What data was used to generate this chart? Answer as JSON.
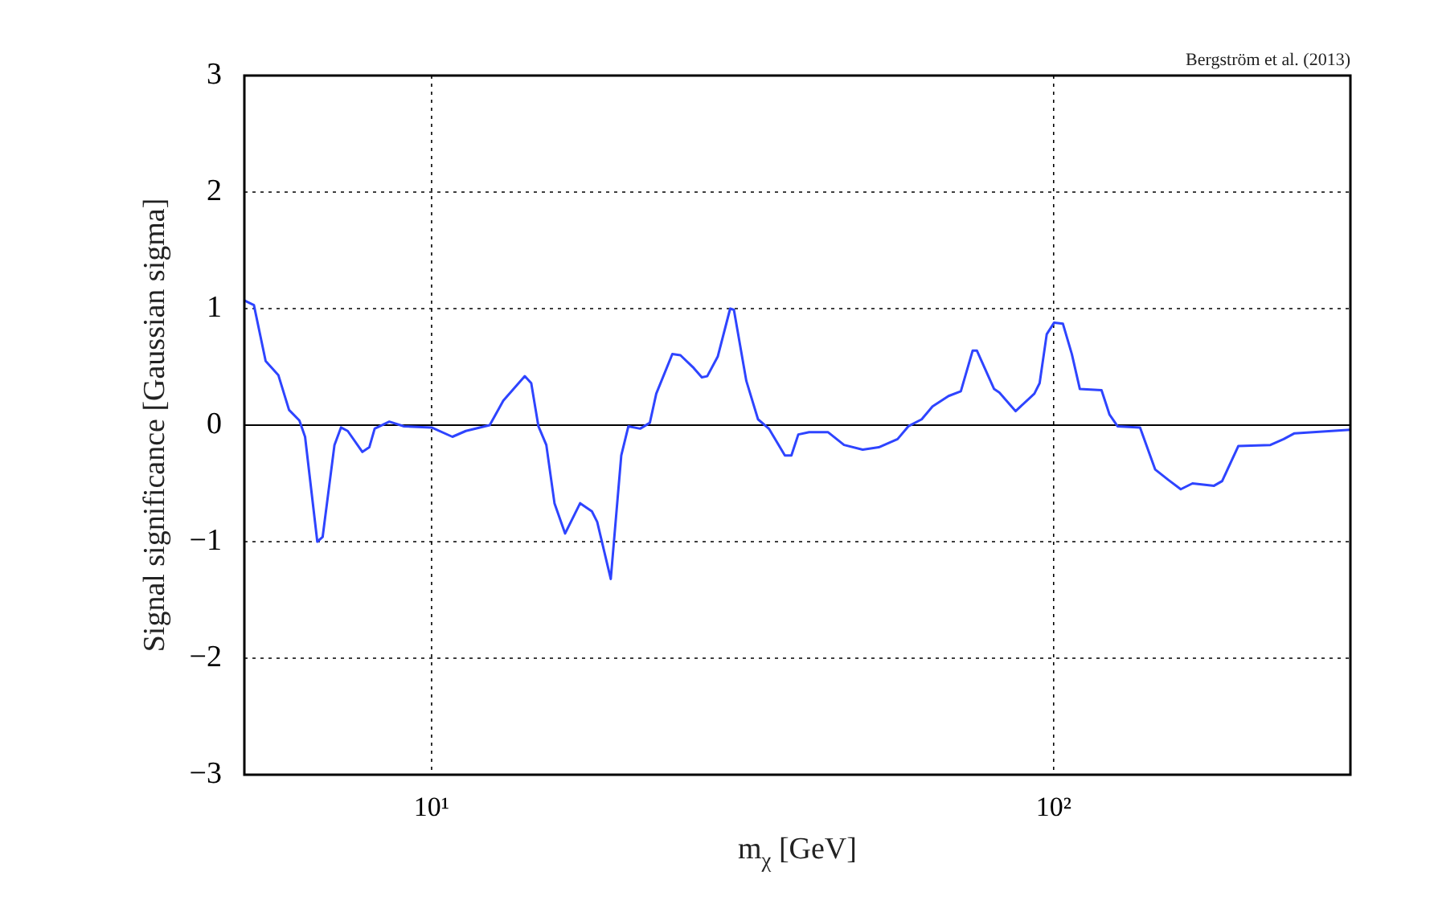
{
  "chart_data": {
    "type": "line",
    "ylabel": "Signal significance [Gaussian sigma]",
    "xlabel": "m$_{χ}$ [GeV]",
    "annotations": [
      "Bergström et al. (2013)"
    ],
    "log": "x",
    "grid": true,
    "legend": false,
    "marker": "none",
    "line_style": "solid",
    "xlim": [
      5,
      300
    ],
    "xticks": [
      {
        "value": 10,
        "label": "10¹"
      },
      {
        "value": 100,
        "label": "10²"
      }
    ],
    "ylim": [
      -3,
      3
    ],
    "yticks": [
      {
        "value": -3,
        "label": "−3"
      },
      {
        "value": -2,
        "label": "−2"
      },
      {
        "value": -1,
        "label": "−1"
      },
      0,
      1,
      2,
      3
    ],
    "ref_lines": [
      {
        "axis": "y",
        "value": 0,
        "color": "#000000"
      }
    ],
    "series": [
      {
        "color": "#2e44ff",
        "x": [
          5.0,
          5.18,
          5.41,
          5.67,
          5.9,
          6.13,
          6.26,
          6.55,
          6.68,
          6.98,
          7.15,
          7.33,
          7.74,
          7.94,
          8.1,
          8.55,
          9.03,
          10.0,
          10.8,
          11.35,
          12.4,
          13.04,
          14.12,
          14.46,
          14.85,
          15.29,
          15.76,
          16.39,
          17.33,
          18.1,
          18.46,
          19.41,
          20.18,
          20.72,
          21.64,
          22.43,
          22.97,
          24.38,
          25.12,
          26.39,
          27.19,
          27.74,
          28.85,
          30.2,
          30.62,
          32.06,
          33.48,
          34.85,
          36.98,
          37.88,
          38.86,
          40.45,
          43.36,
          46.03,
          49.32,
          52.34,
          56.12,
          58.4,
          61.36,
          63.86,
          67.78,
          70.93,
          74.11,
          75.26,
          80.23,
          81.82,
          86.86,
          93.11,
          94.95,
          97.48,
          100.2,
          103.5,
          106.98,
          110.2,
          119.4,
          123.0,
          126.7,
          137.7,
          145.6,
          152.9,
          160.1,
          167.2,
          181.1,
          186.6,
          198.1,
          223.1,
          234.3,
          243.9,
          300
        ],
        "values": [
          1.07,
          1.03,
          0.55,
          0.43,
          0.13,
          0.04,
          -0.1,
          -1.0,
          -0.96,
          -0.17,
          -0.02,
          -0.05,
          -0.23,
          -0.19,
          -0.03,
          0.03,
          -0.01,
          -0.02,
          -0.1,
          -0.05,
          0.0,
          0.21,
          0.42,
          0.36,
          -0.01,
          -0.17,
          -0.67,
          -0.93,
          -0.67,
          -0.74,
          -0.83,
          -1.32,
          -0.26,
          -0.01,
          -0.03,
          0.02,
          0.27,
          0.61,
          0.6,
          0.49,
          0.41,
          0.42,
          0.59,
          1.0,
          0.99,
          0.38,
          0.05,
          -0.03,
          -0.26,
          -0.26,
          -0.08,
          -0.06,
          -0.06,
          -0.17,
          -0.21,
          -0.19,
          -0.12,
          -0.01,
          0.05,
          0.16,
          0.25,
          0.29,
          0.64,
          0.64,
          0.31,
          0.28,
          0.12,
          0.27,
          0.36,
          0.78,
          0.88,
          0.87,
          0.61,
          0.31,
          0.3,
          0.09,
          -0.01,
          -0.02,
          -0.38,
          -0.47,
          -0.55,
          -0.5,
          -0.52,
          -0.48,
          -0.18,
          -0.17,
          -0.12,
          -0.07,
          -0.04
        ]
      }
    ]
  }
}
